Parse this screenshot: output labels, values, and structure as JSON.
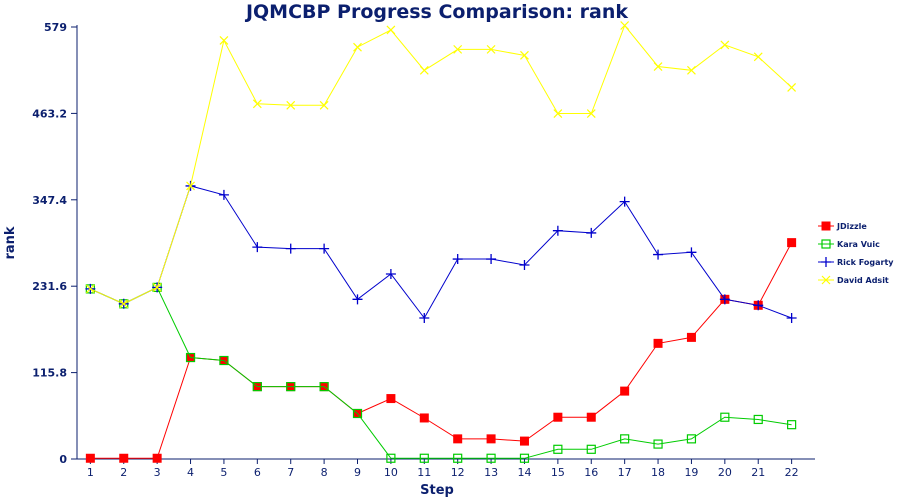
{
  "chart_data": {
    "type": "line",
    "title": "JQMCBP Progress Comparison: rank",
    "xlabel": "Step",
    "ylabel": "rank",
    "x": [
      1,
      2,
      3,
      4,
      5,
      6,
      7,
      8,
      9,
      10,
      11,
      12,
      13,
      14,
      15,
      16,
      17,
      18,
      19,
      20,
      21,
      22
    ],
    "xlim": [
      0.6,
      22.7
    ],
    "ylim": [
      0,
      579
    ],
    "yticks": [
      0,
      115.8,
      231.6,
      347.4,
      463.2,
      579
    ],
    "ytick_labels": [
      "0",
      "115.8",
      "231.6",
      "347.4",
      "463.2",
      "579"
    ],
    "grid": false,
    "legend_position": "right",
    "series": [
      {
        "name": "JDizzle",
        "color": "#ff0000",
        "marker": "filled-square",
        "values": [
          1,
          1,
          1,
          136,
          132,
          97,
          97,
          97,
          61,
          81,
          55,
          27,
          27,
          24,
          56,
          56,
          91,
          155,
          163,
          214,
          206,
          290
        ]
      },
      {
        "name": "Kara Vuic",
        "color": "#00cc00",
        "marker": "open-square",
        "values": [
          228,
          208,
          230,
          136,
          132,
          97,
          97,
          97,
          61,
          1,
          1,
          1,
          1,
          1,
          13,
          13,
          27,
          20,
          27,
          56,
          53,
          46
        ]
      },
      {
        "name": "Rick Fogarty",
        "color": "#0000cc",
        "marker": "plus",
        "values": [
          228,
          208,
          230,
          366,
          354,
          284,
          282,
          282,
          214,
          248,
          189,
          268,
          268,
          260,
          306,
          303,
          345,
          274,
          277,
          214,
          206,
          189
        ]
      },
      {
        "name": "David Adsit",
        "color": "#ffff00",
        "marker": "x",
        "values": [
          228,
          208,
          230,
          366,
          561,
          476,
          474,
          474,
          552,
          575,
          521,
          549,
          549,
          541,
          463,
          463,
          581,
          526,
          521,
          555,
          539,
          498
        ]
      }
    ]
  }
}
